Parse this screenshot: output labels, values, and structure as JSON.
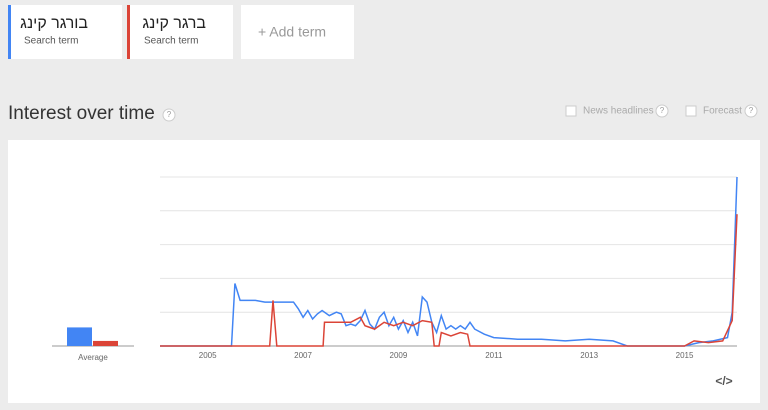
{
  "terms": [
    {
      "label": "בורגר קינג",
      "sublabel": "Search term"
    },
    {
      "label": "ברגר קינג",
      "sublabel": "Search term"
    }
  ],
  "add_term": "+ Add term",
  "section_title": "Interest over time",
  "help_icon": "?",
  "options": [
    "News headlines",
    "Forecast"
  ],
  "embed_icon": "</>",
  "chart_data": {
    "type": "line",
    "average_label": "Average",
    "series": [
      {
        "color": "#4285f4",
        "average": 11,
        "x": [
          2004.0,
          2005.5,
          2005.57,
          2005.68,
          2006.0,
          2006.2,
          2006.5,
          2006.8,
          2006.9,
          2007.0,
          2007.1,
          2007.2,
          2007.3,
          2007.4,
          2007.55,
          2007.7,
          2007.8,
          2007.9,
          2008.0,
          2008.1,
          2008.2,
          2008.3,
          2008.4,
          2008.5,
          2008.6,
          2008.7,
          2008.8,
          2008.9,
          2009.0,
          2009.1,
          2009.2,
          2009.3,
          2009.4,
          2009.5,
          2009.6,
          2009.7,
          2009.8,
          2009.9,
          2010.0,
          2010.1,
          2010.2,
          2010.3,
          2010.4,
          2010.5,
          2010.6,
          2010.8,
          2011.0,
          2011.5,
          2012.0,
          2012.5,
          2013.0,
          2013.5,
          2013.8,
          2015.0,
          2015.3,
          2015.6,
          2015.9,
          2016.0,
          2016.1
        ],
        "values": [
          0,
          0,
          37,
          27,
          27,
          26,
          26,
          26,
          22,
          17,
          21,
          16,
          19,
          21,
          18,
          20,
          19,
          12,
          13,
          12,
          15,
          21,
          13,
          10,
          17,
          20,
          12,
          17,
          10,
          15,
          8,
          14,
          6,
          29,
          26,
          14,
          8,
          18,
          10,
          12,
          10,
          12,
          10,
          14,
          10,
          7,
          5,
          4,
          4,
          3,
          4,
          3,
          0,
          0,
          2,
          3,
          5,
          20,
          100
        ]
      },
      {
        "color": "#db4437",
        "average": 3,
        "x": [
          2004.0,
          2006.3,
          2006.37,
          2006.45,
          2007.42,
          2007.45,
          2007.7,
          2008.0,
          2008.2,
          2008.3,
          2008.5,
          2008.7,
          2008.9,
          2009.1,
          2009.3,
          2009.5,
          2009.7,
          2009.75,
          2009.85,
          2009.9,
          2010.1,
          2010.3,
          2010.45,
          2010.5,
          2015.0,
          2015.2,
          2015.5,
          2015.8,
          2016.0,
          2016.1
        ],
        "values": [
          0,
          0,
          27,
          0,
          0,
          14,
          14,
          14,
          17,
          12,
          10,
          14,
          12,
          14,
          12,
          15,
          14,
          0,
          0,
          8,
          6,
          8,
          7,
          0,
          0,
          3,
          2,
          3,
          15,
          78
        ]
      }
    ],
    "xlim": [
      2004,
      2016.1
    ],
    "xticks": [
      2005,
      2007,
      2009,
      2011,
      2013,
      2015
    ],
    "ylim": [
      0,
      100
    ],
    "yticks": [
      0,
      20,
      40,
      60,
      80,
      100
    ],
    "grid": true
  }
}
